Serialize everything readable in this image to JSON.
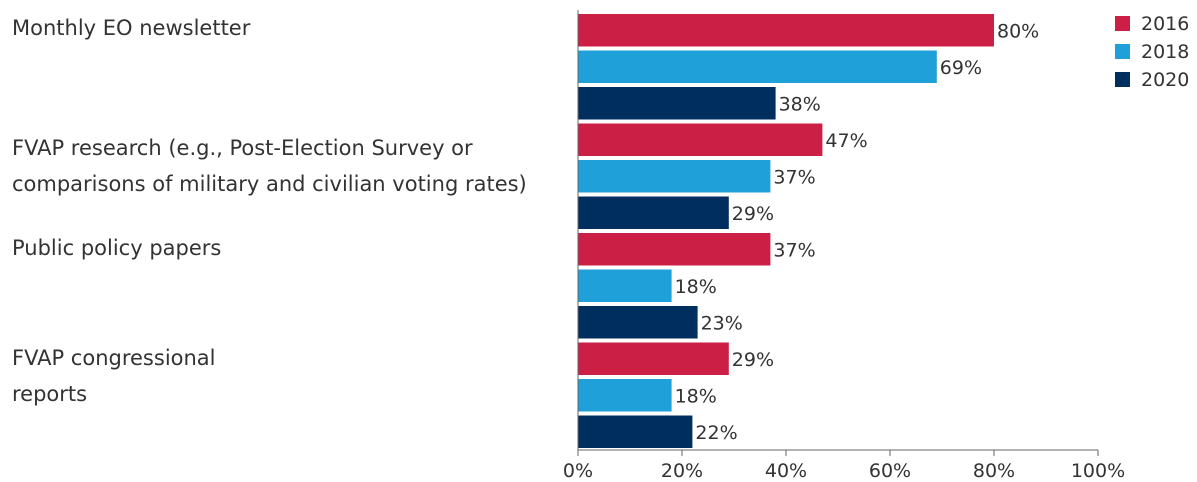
{
  "chart_data": {
    "type": "bar",
    "orientation": "horizontal",
    "categories": [
      "Monthly EO newsletter",
      "FVAP research (e.g., Post-Election Survey or\ncomparisons of military and civilian voting rates)",
      "Public policy papers",
      "FVAP congressional\nreports"
    ],
    "series": [
      {
        "name": "2016",
        "color": "#cc1f45",
        "values": [
          80,
          47,
          37,
          29
        ]
      },
      {
        "name": "2018",
        "color": "#1fa0d8",
        "values": [
          69,
          37,
          18,
          18
        ]
      },
      {
        "name": "2020",
        "color": "#002f5f",
        "values": [
          38,
          29,
          23,
          22
        ]
      }
    ],
    "value_suffix": "%",
    "xlim": [
      0,
      100
    ],
    "xticks": [
      "0%",
      "20%",
      "40%",
      "60%",
      "80%",
      "100%"
    ],
    "legend_position": "top-right",
    "grid": false
  }
}
